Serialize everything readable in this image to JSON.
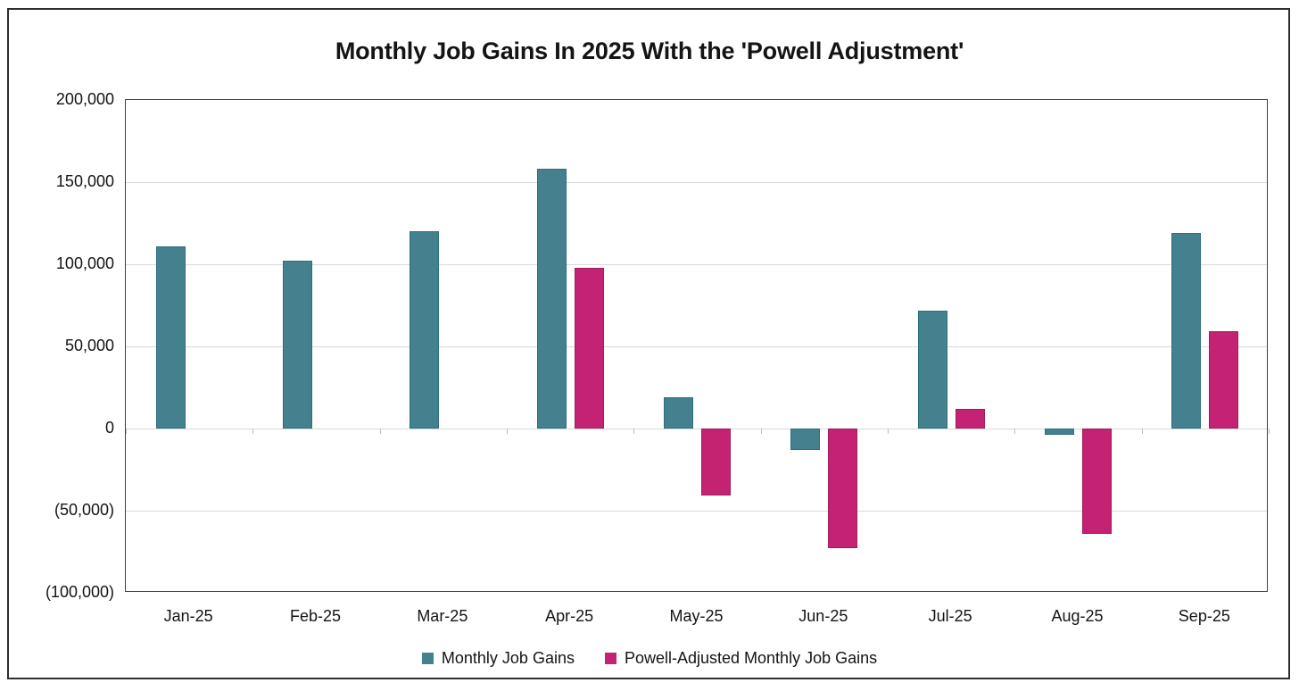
{
  "chart_data": {
    "type": "bar",
    "title": "Monthly Job Gains In 2025 With the 'Powell Adjustment'",
    "categories": [
      "Jan-25",
      "Feb-25",
      "Mar-25",
      "Apr-25",
      "May-25",
      "Jun-25",
      "Jul-25",
      "Aug-25",
      "Sep-25"
    ],
    "series": [
      {
        "name": "Monthly Job Gains",
        "color": "#44808E",
        "border_color": "#2E6E7D",
        "values": [
          111000,
          102000,
          120000,
          158000,
          19000,
          -13000,
          72000,
          -4000,
          119000
        ]
      },
      {
        "name": "Powell-Adjusted Monthly Job Gains",
        "color": "#C32372",
        "border_color": "#A01C5D",
        "values": [
          null,
          null,
          null,
          98000,
          -41000,
          -73000,
          12000,
          -64000,
          59000
        ]
      }
    ],
    "ylim": [
      -100000,
      200000
    ],
    "ytick_step": 50000,
    "ytick_labels": [
      "200,000",
      "150,000",
      "100,000",
      "50,000",
      "0",
      "(50,000)",
      "(100,000)"
    ],
    "grid": true,
    "legend_position": "bottom",
    "gridline_color": "#d9d9d9",
    "category_tick_color": "#bfbfbf",
    "plot_border_color": "#404040"
  }
}
